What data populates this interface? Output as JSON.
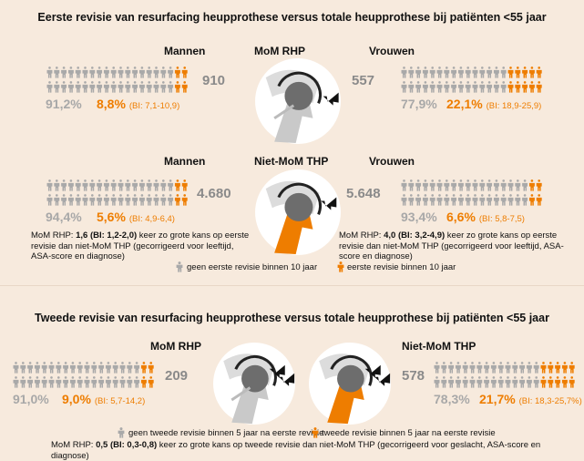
{
  "section1": {
    "title": "Eerste revisie van resurfacing heupprothese versus totale heupprothese bij patiënten <55 jaar",
    "panels": [
      {
        "type_label": "MoM RHP",
        "men": {
          "label": "Mannen",
          "count": "910",
          "pct_no": "91,2%",
          "pct_yes": "8,8%",
          "ci": "(BI: 7,1-10,9)",
          "orange_figures": 4
        },
        "women": {
          "label": "Vrouwen",
          "count": "557",
          "pct_no": "77,9%",
          "pct_yes": "22,1%",
          "ci": "(BI: 18,9-25,9)",
          "orange_figures": 9
        }
      },
      {
        "type_label": "Niet-MoM THP",
        "men": {
          "label": "Mannen",
          "count": "4.680",
          "pct_no": "94,4%",
          "pct_yes": "5,6%",
          "ci": "(BI: 4,9-6,4)",
          "orange_figures": 3
        },
        "women": {
          "label": "Vrouwen",
          "count": "5.648",
          "pct_no": "93,4%",
          "pct_yes": "6,6%",
          "ci": "(BI: 5,8-7,5)",
          "orange_figures": 3
        }
      }
    ],
    "note_men": {
      "prefix": "MoM RHP: ",
      "value": "1,6 (BI: 1,2-2,0)",
      "suffix": " keer zo grote kans op eerste revisie dan niet-MoM THP (gecorrigeerd voor leeftijd, ASA-score en diagnose)"
    },
    "note_women": {
      "prefix": "MoM RHP: ",
      "value": "4,0 (BI: 3,2-4,9)",
      "suffix": " keer zo grote kans op eerste revisie dan niet-MoM THP (gecorrigeerd voor leeftijd, ASA-score en diagnose)"
    },
    "legend_no": "geen eerste revisie binnen 10 jaar",
    "legend_yes": "eerste revisie binnen 10 jaar"
  },
  "section2": {
    "title": "Tweede revisie van resurfacing heupprothese versus totale heupprothese bij patiënten <55 jaar",
    "left": {
      "type_label": "MoM RHP",
      "count": "209",
      "pct_no": "91,0%",
      "pct_yes": "9,0%",
      "ci": "(BI: 5,7-14,2)",
      "orange_figures": 4
    },
    "right": {
      "type_label": "Niet-MoM THP",
      "count": "578",
      "pct_no": "78,3%",
      "pct_yes": "21,7%",
      "ci": "(BI: 18,3-25,7%)",
      "orange_figures": 9
    },
    "legend_no": "geen tweede revisie binnen 5 jaar na eerste revisie",
    "legend_yes": "tweede revisie binnen 5 jaar na eerste revisie",
    "note": {
      "prefix": "MoM RHP: ",
      "value": "0,5 (BI: 0,3-0,8)",
      "suffix": " keer zo grote kans op tweede revisie dan niet-MoM THP (gecorrigeerd voor geslacht, ASA-score en diagnose)"
    }
  },
  "colors": {
    "background": "#f7eadd",
    "gray": "#a9a9a9",
    "orange": "#ee7d00",
    "dark": "#6d6d6d"
  }
}
